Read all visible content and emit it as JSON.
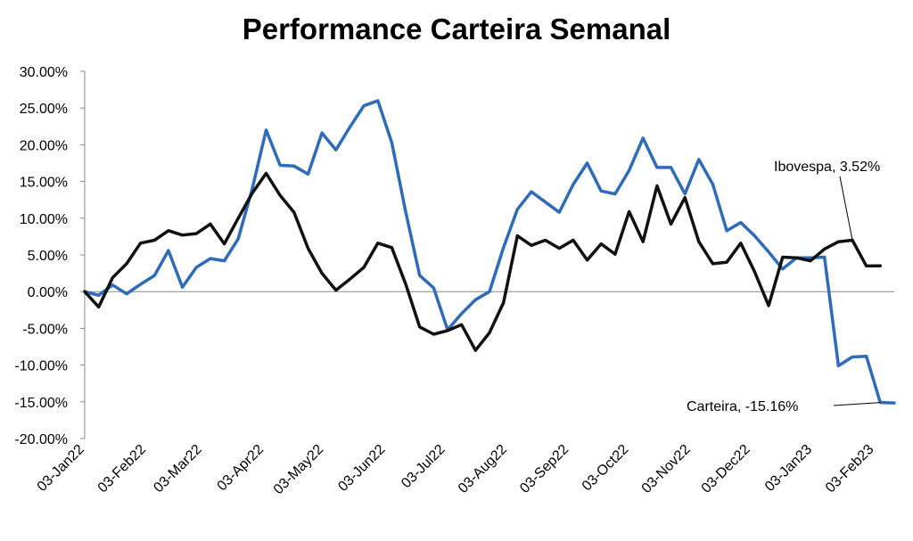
{
  "chart_data": {
    "type": "line",
    "title": "Performance Carteira Semanal",
    "xlabel": "",
    "ylabel": "",
    "ylim": [
      -0.2,
      0.3
    ],
    "y_tick_labels": [
      "30.00%",
      "25.00%",
      "20.00%",
      "15.00%",
      "10.00%",
      "5.00%",
      "0.00%",
      "-5.00%",
      "-10.00%",
      "-15.00%",
      "-20.00%"
    ],
    "x_tick_labels": [
      "03-Jan22",
      "03-Feb22",
      "03-Mar22",
      "03-Apr22",
      "03-May22",
      "03-Jun22",
      "03-Jul22",
      "03-Aug22",
      "03-Sep22",
      "03-Oct22",
      "03-Nov22",
      "03-Dec22",
      "03-Jan23",
      "03-Feb23"
    ],
    "grid": false,
    "colors": {
      "Carteira": "#2e6bb8",
      "Ibovespa": "#111111"
    },
    "series": [
      {
        "name": "Carteira",
        "values": [
          0.0,
          -0.005,
          0.009,
          -0.003,
          0.01,
          0.022,
          0.056,
          0.006,
          0.033,
          0.045,
          0.042,
          0.072,
          0.14,
          0.22,
          0.172,
          0.171,
          0.16,
          0.216,
          0.193,
          0.224,
          0.253,
          0.26,
          0.203,
          0.108,
          0.022,
          0.005,
          -0.052,
          -0.03,
          -0.011,
          0.0,
          0.06,
          0.112,
          0.136,
          0.122,
          0.108,
          0.146,
          0.175,
          0.137,
          0.133,
          0.165,
          0.209,
          0.169,
          0.169,
          0.133,
          0.18,
          0.146,
          0.083,
          0.094,
          0.076,
          0.054,
          0.031,
          0.046,
          0.046,
          0.047,
          -0.101,
          -0.089,
          -0.088,
          -0.151,
          -0.1516
        ]
      },
      {
        "name": "Ibovespa",
        "values": [
          0.0,
          -0.021,
          0.019,
          0.038,
          0.066,
          0.07,
          0.083,
          0.077,
          0.079,
          0.092,
          0.065,
          0.1,
          0.134,
          0.161,
          0.131,
          0.108,
          0.059,
          0.025,
          0.002,
          0.017,
          0.033,
          0.066,
          0.06,
          0.01,
          -0.048,
          -0.058,
          -0.053,
          -0.045,
          -0.08,
          -0.056,
          -0.015,
          0.076,
          0.063,
          0.07,
          0.059,
          0.07,
          0.043,
          0.065,
          0.051,
          0.109,
          0.068,
          0.144,
          0.092,
          0.128,
          0.068,
          0.038,
          0.04,
          0.066,
          0.027,
          -0.019,
          0.047,
          0.046,
          0.042,
          0.058,
          0.068,
          0.07,
          0.035,
          0.0352
        ]
      }
    ],
    "annotations": [
      {
        "series": "Ibovespa",
        "label": "Ibovespa,  3.52%"
      },
      {
        "series": "Carteira",
        "label": "Carteira,  -15.16%"
      }
    ]
  }
}
